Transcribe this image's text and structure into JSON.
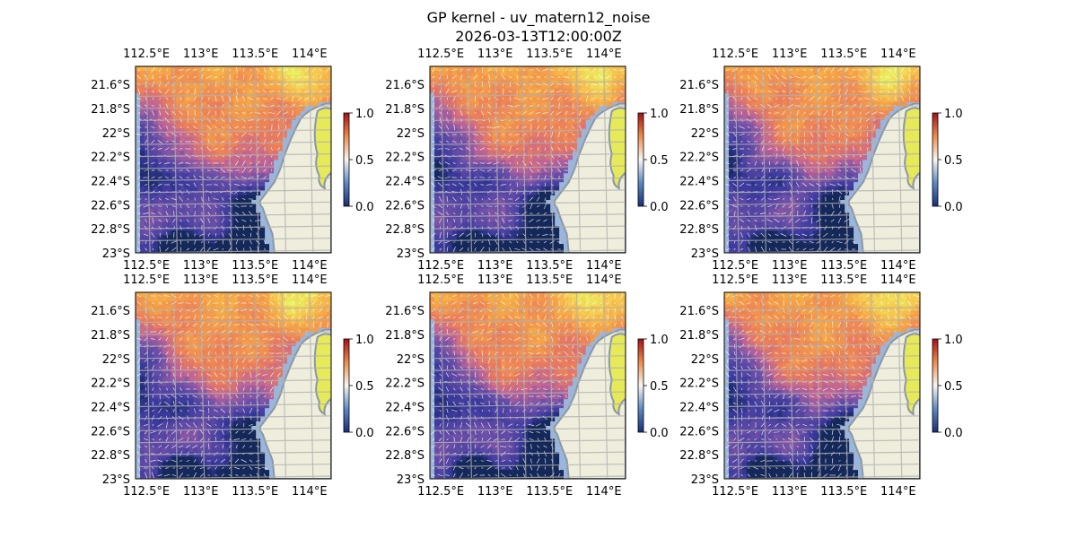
{
  "figure": {
    "title_line1": "GP kernel - uv_matern12_noise",
    "title_line2": "2026-03-13T12:00:00Z"
  },
  "chart_data": {
    "type": "heatmap",
    "description": "Six map panels of the same region; colour field (0 to 1) with white wind-vector arrows, land shaded beige, coastline in grey",
    "panel_count": 6,
    "layout": "2 rows x 3 columns",
    "xlim": [
      112.4,
      114.2
    ],
    "ylim": [
      -23.0,
      -21.45
    ],
    "x_ticks": [
      112.5,
      113,
      113.5,
      114
    ],
    "x_tick_labels": [
      "112.5°E",
      "113°E",
      "113.5°E",
      "114°E"
    ],
    "x_tick_positions": "top and bottom",
    "y_ticks": [
      -21.6,
      -21.8,
      -22.0,
      -22.2,
      -22.4,
      -22.6,
      -22.8,
      -23.0
    ],
    "y_tick_labels": [
      "21.6°S",
      "21.8°S",
      "22°S",
      "22.2°S",
      "22.4°S",
      "22.6°S",
      "22.8°S",
      "23°S"
    ],
    "grid": true,
    "colorbar": {
      "vmin": 0.0,
      "vmax": 1.0,
      "ticks": [
        0.0,
        0.5,
        1.0
      ],
      "tick_labels": [
        "0.0",
        "0.5",
        "1.0"
      ],
      "colormap": "blue-white-red",
      "colors": [
        "#2b3a9a",
        "#f7f6f3",
        "#a50f15"
      ]
    },
    "field_colors": {
      "low": "#3b3a9e",
      "mid_low": "#7b5aa6",
      "mid": "#c06a8e",
      "mid_high": "#f0874a",
      "high": "#f5b84a",
      "peak": "#eaf060",
      "land": "#efeedd",
      "coast": "#8a97a6",
      "ocean_edge": "#9ab6dd",
      "arrows": "#ffffff",
      "grid": "#b0b0b0"
    }
  }
}
